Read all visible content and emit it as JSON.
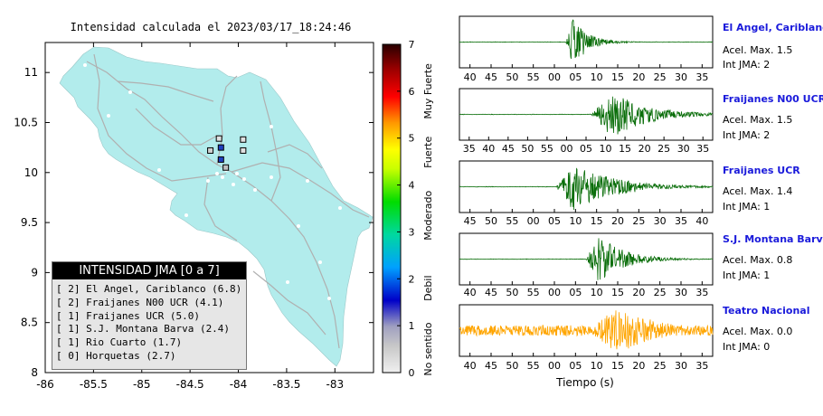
{
  "map": {
    "title": "Intensidad calculada el 2023/03/17_18:24:46",
    "xticks": [
      "-86",
      "-85.5",
      "-85",
      "-84.5",
      "-84",
      "-83.5",
      "-83"
    ],
    "yticks": [
      "11",
      "10.5",
      "10",
      "9.5",
      "9",
      "8.5",
      "8"
    ],
    "colors": {
      "land": "#b2ecec",
      "roads": "#b0b0b0",
      "frame": "#000000"
    }
  },
  "colorbar": {
    "ticks": [
      "7",
      "6",
      "5",
      "4",
      "3",
      "2",
      "1",
      "0"
    ],
    "labels": [
      "Muy Fuerte",
      "Fuerte",
      "Moderado",
      "Debil",
      "No sentido"
    ],
    "gradient": [
      "#f0f0f0",
      "#a0a0a0",
      "#0000c8",
      "#00a0ff",
      "#00dc00",
      "#c8ff00",
      "#ffff00",
      "#ff9900",
      "#ff0000",
      "#a00000",
      "#2a0000"
    ]
  },
  "legend": {
    "title": "INTENSIDAD JMA [0 a 7]",
    "items": [
      "[ 2] El Angel, Cariblanco (6.8)",
      "[ 2] Fraijanes N00 UCR (4.1)",
      "[ 1] Fraijanes UCR (5.0)",
      "[ 1] S.J. Montana Barva (2.4)",
      "[ 1] Rio Cuarto (1.7)",
      "[ 0] Horquetas (2.7)"
    ]
  },
  "chart_data": [
    {
      "type": "scatter",
      "title": "Intensidad calculada el 2023/03/17_18:24:46",
      "xlim": [
        -86,
        -82.6
      ],
      "ylim": [
        8,
        11.3
      ],
      "xticks": [
        -86,
        -85.5,
        -85,
        -84.5,
        -84,
        -83.5,
        -83
      ],
      "yticks": [
        8,
        8.5,
        9,
        9.5,
        10,
        10.5,
        11
      ],
      "grid": false,
      "stations": [
        {
          "lon": -84.2,
          "lat": 10.34,
          "color": "#e0e0e0"
        },
        {
          "lon": -84.18,
          "lat": 10.25,
          "color": "#2040c0"
        },
        {
          "lon": -84.29,
          "lat": 10.22,
          "color": "#d0d0d0"
        },
        {
          "lon": -84.18,
          "lat": 10.13,
          "color": "#2040c0"
        },
        {
          "lon": -83.95,
          "lat": 10.33,
          "color": "#e0e0e0"
        },
        {
          "lon": -83.95,
          "lat": 10.22,
          "color": "#e0e0e0"
        },
        {
          "lon": -84.13,
          "lat": 10.05,
          "color": "#c0c0c0"
        }
      ]
    },
    {
      "type": "line",
      "xlabel": "Tiempo (s)",
      "series": [
        {
          "name": "El Angel, Cariblanco",
          "xticks": [
            "40",
            "45",
            "50",
            "55",
            "00",
            "05",
            "10",
            "15",
            "20",
            "25",
            "30",
            "35"
          ],
          "burst_start": 0.42,
          "peak": 0.45,
          "amp": 1.0,
          "decay": 0.06,
          "color": "#0a6e0a",
          "noise": 0.01
        },
        {
          "name": "Fraijanes N00 UCR",
          "xticks": [
            "35",
            "40",
            "45",
            "50",
            "55",
            "00",
            "05",
            "10",
            "15",
            "20",
            "25",
            "30",
            "35"
          ],
          "burst_start": 0.52,
          "peak": 0.6,
          "amp": 1.0,
          "decay": 0.14,
          "color": "#0a6e0a",
          "noise": 0.01
        },
        {
          "name": "Fraijanes UCR",
          "xticks": [
            "45",
            "50",
            "55",
            "00",
            "05",
            "10",
            "15",
            "20",
            "25",
            "30",
            "35",
            "40"
          ],
          "burst_start": 0.38,
          "peak": 0.45,
          "amp": 1.0,
          "decay": 0.16,
          "color": "#0a6e0a",
          "noise": 0.01
        },
        {
          "name": "S.J. Montana Barva",
          "xticks": [
            "40",
            "45",
            "50",
            "55",
            "00",
            "05",
            "10",
            "15",
            "20",
            "25",
            "30",
            "35"
          ],
          "burst_start": 0.5,
          "peak": 0.55,
          "amp": 1.0,
          "decay": 0.1,
          "color": "#0a6e0a",
          "noise": 0.01
        },
        {
          "name": "Teatro Nacional",
          "xticks": [
            "40",
            "45",
            "50",
            "55",
            "00",
            "05",
            "10",
            "15",
            "20",
            "25",
            "30",
            "35"
          ],
          "burst_start": 0.5,
          "peak": 0.63,
          "amp": 1.0,
          "decay": 0.16,
          "color": "#ffa500",
          "noise": 0.22
        }
      ]
    }
  ],
  "stations_panel": [
    {
      "name": "El Angel, Cariblanco",
      "acel": "Acel. Max. 1.5",
      "int": "Int JMA: 2"
    },
    {
      "name": "Fraijanes N00 UCR",
      "acel": "Acel. Max. 1.5",
      "int": "Int JMA: 2"
    },
    {
      "name": "Fraijanes UCR",
      "acel": "Acel. Max. 1.4",
      "int": "Int JMA: 1"
    },
    {
      "name": "S.J. Montana Barva",
      "acel": "Acel. Max. 0.8",
      "int": "Int JMA: 1"
    },
    {
      "name": "Teatro Nacional",
      "acel": "Acel. Max. 0.0",
      "int": "Int JMA: 0"
    }
  ]
}
